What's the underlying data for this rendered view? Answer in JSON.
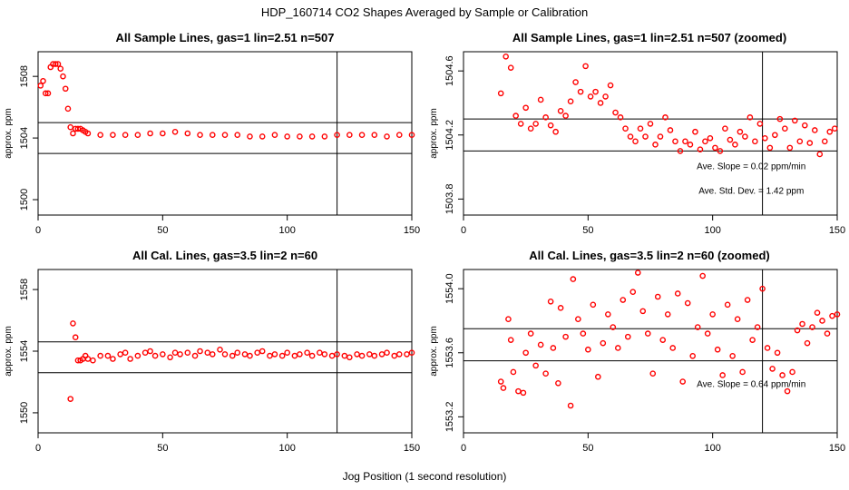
{
  "figure": {
    "title": "HDP_160714  CO2 Shapes Averaged by Sample or Calibration",
    "xlabel": "Jog Position (1 second resolution)"
  },
  "chart_data": [
    {
      "type": "scatter",
      "title": "All Sample Lines, gas=1 lin=2.51 n=507",
      "xlabel": "",
      "ylabel": "approx. ppm",
      "xlim": [
        0,
        150
      ],
      "ylim": [
        1499,
        1509.6
      ],
      "xticks": [
        0,
        50,
        100,
        150
      ],
      "yticks": [
        1500,
        1504,
        1508
      ],
      "hlines": [
        1505.0,
        1503.0
      ],
      "vline": 120,
      "annotations": [],
      "series": [
        {
          "name": "Sample average",
          "color": "#ff0000",
          "x": [
            1,
            2,
            3,
            4,
            5,
            6,
            7,
            8,
            9,
            10,
            11,
            12,
            13,
            14,
            15,
            16,
            17,
            18,
            19,
            20,
            25,
            30,
            35,
            40,
            45,
            50,
            55,
            60,
            65,
            70,
            75,
            80,
            85,
            90,
            95,
            100,
            105,
            110,
            115,
            120,
            125,
            130,
            135,
            140,
            145,
            150
          ],
          "y": [
            1507.4,
            1507.7,
            1506.9,
            1506.9,
            1508.6,
            1508.8,
            1508.8,
            1508.8,
            1508.5,
            1508.0,
            1507.2,
            1505.9,
            1504.7,
            1504.3,
            1504.6,
            1504.6,
            1504.6,
            1504.5,
            1504.4,
            1504.3,
            1504.2,
            1504.2,
            1504.2,
            1504.2,
            1504.3,
            1504.3,
            1504.4,
            1504.3,
            1504.2,
            1504.2,
            1504.2,
            1504.2,
            1504.1,
            1504.1,
            1504.2,
            1504.1,
            1504.1,
            1504.1,
            1504.1,
            1504.2,
            1504.2,
            1504.2,
            1504.2,
            1504.1,
            1504.2,
            1504.2
          ]
        }
      ]
    },
    {
      "type": "scatter",
      "title": "All Sample Lines, gas=1 lin=2.51 n=507 (zoomed)",
      "xlabel": "",
      "ylabel": "approx. ppm",
      "xlim": [
        0,
        150
      ],
      "ylim": [
        1503.7,
        1504.72
      ],
      "xticks": [
        0,
        50,
        100,
        150
      ],
      "yticks": [
        1503.8,
        1504.2,
        1504.6
      ],
      "hlines": [
        1504.3,
        1504.1
      ],
      "vline": 120,
      "annotations": [
        "Ave. Slope =  0.02  ppm/min",
        "Ave. Std. Dev. =  1.42  ppm"
      ],
      "series": [
        {
          "name": "Sample average (zoomed)",
          "color": "#ff0000",
          "x": [
            15,
            17,
            19,
            21,
            23,
            25,
            27,
            29,
            31,
            33,
            35,
            37,
            39,
            41,
            43,
            45,
            47,
            49,
            51,
            53,
            55,
            57,
            59,
            61,
            63,
            65,
            67,
            69,
            71,
            73,
            75,
            77,
            79,
            81,
            83,
            85,
            87,
            89,
            91,
            93,
            95,
            97,
            99,
            101,
            103,
            105,
            107,
            109,
            111,
            113,
            115,
            117,
            119,
            121,
            123,
            125,
            127,
            129,
            131,
            133,
            135,
            137,
            139,
            141,
            143,
            145,
            147,
            149
          ],
          "y": [
            1504.46,
            1504.69,
            1504.62,
            1504.32,
            1504.27,
            1504.37,
            1504.24,
            1504.27,
            1504.42,
            1504.31,
            1504.26,
            1504.22,
            1504.35,
            1504.32,
            1504.41,
            1504.53,
            1504.47,
            1504.63,
            1504.44,
            1504.47,
            1504.4,
            1504.44,
            1504.51,
            1504.34,
            1504.31,
            1504.24,
            1504.19,
            1504.16,
            1504.24,
            1504.19,
            1504.27,
            1504.14,
            1504.19,
            1504.31,
            1504.23,
            1504.16,
            1504.1,
            1504.16,
            1504.14,
            1504.22,
            1504.11,
            1504.16,
            1504.18,
            1504.12,
            1504.1,
            1504.24,
            1504.17,
            1504.14,
            1504.22,
            1504.19,
            1504.31,
            1504.16,
            1504.27,
            1504.18,
            1504.12,
            1504.2,
            1504.3,
            1504.24,
            1504.12,
            1504.29,
            1504.16,
            1504.26,
            1504.15,
            1504.23,
            1504.08,
            1504.16,
            1504.22,
            1504.24
          ]
        }
      ]
    },
    {
      "type": "scatter",
      "title": "All Cal. Lines, gas=3.5 lin=2 n=60",
      "xlabel": "",
      "ylabel": "approx. ppm",
      "xlim": [
        0,
        150
      ],
      "ylim": [
        1548.7,
        1559.3
      ],
      "xticks": [
        0,
        50,
        100,
        150
      ],
      "yticks": [
        1550,
        1554,
        1558
      ],
      "hlines": [
        1554.6,
        1552.6
      ],
      "vline": 120,
      "annotations": [],
      "series": [
        {
          "name": "Calibration average",
          "color": "#ff0000",
          "x": [
            13,
            14,
            15,
            16,
            17,
            18,
            19,
            20,
            22,
            25,
            28,
            30,
            33,
            35,
            37,
            40,
            43,
            45,
            47,
            50,
            53,
            55,
            57,
            60,
            63,
            65,
            68,
            70,
            73,
            75,
            78,
            80,
            83,
            85,
            88,
            90,
            93,
            95,
            98,
            100,
            103,
            105,
            108,
            110,
            113,
            115,
            118,
            120,
            123,
            125,
            128,
            130,
            133,
            135,
            138,
            140,
            143,
            145,
            148,
            150
          ],
          "y": [
            1550.9,
            1555.8,
            1554.9,
            1553.4,
            1553.4,
            1553.5,
            1553.7,
            1553.5,
            1553.4,
            1553.7,
            1553.7,
            1553.5,
            1553.8,
            1553.9,
            1553.5,
            1553.7,
            1553.9,
            1554.0,
            1553.7,
            1553.8,
            1553.6,
            1553.9,
            1553.8,
            1553.9,
            1553.7,
            1554.0,
            1553.9,
            1553.8,
            1554.1,
            1553.8,
            1553.7,
            1553.9,
            1553.8,
            1553.7,
            1553.9,
            1554.0,
            1553.7,
            1553.8,
            1553.7,
            1553.9,
            1553.7,
            1553.8,
            1553.9,
            1553.7,
            1553.9,
            1553.8,
            1553.7,
            1553.8,
            1553.7,
            1553.6,
            1553.8,
            1553.7,
            1553.8,
            1553.7,
            1553.8,
            1553.9,
            1553.7,
            1553.8,
            1553.8,
            1553.9
          ]
        }
      ]
    },
    {
      "type": "scatter",
      "title": "All Cal. Lines, gas=3.5 lin=2 n=60 (zoomed)",
      "xlabel": "",
      "ylabel": "approx. ppm",
      "xlim": [
        0,
        150
      ],
      "ylim": [
        1553.1,
        1554.12
      ],
      "xticks": [
        0,
        50,
        100,
        150
      ],
      "yticks": [
        1553.2,
        1553.6,
        1554.0
      ],
      "hlines": [
        1553.75,
        1553.55
      ],
      "vline": 120,
      "annotations": [
        "Ave. Slope =  0.64  ppm/min"
      ],
      "series": [
        {
          "name": "Calibration average (zoomed)",
          "color": "#ff0000",
          "x": [
            15,
            16,
            18,
            19,
            20,
            22,
            24,
            25,
            27,
            29,
            31,
            33,
            35,
            36,
            38,
            39,
            41,
            43,
            44,
            46,
            48,
            50,
            52,
            54,
            56,
            58,
            60,
            62,
            64,
            66,
            68,
            70,
            72,
            74,
            76,
            78,
            80,
            82,
            84,
            86,
            88,
            90,
            92,
            94,
            96,
            98,
            100,
            102,
            104,
            106,
            108,
            110,
            112,
            114,
            116,
            118,
            120,
            122,
            124,
            126,
            128,
            130,
            132,
            134,
            136,
            138,
            140,
            142,
            144,
            146,
            148,
            150
          ],
          "y": [
            1553.42,
            1553.38,
            1553.81,
            1553.68,
            1553.48,
            1553.36,
            1553.35,
            1553.6,
            1553.72,
            1553.52,
            1553.65,
            1553.47,
            1553.92,
            1553.63,
            1553.41,
            1553.88,
            1553.7,
            1553.27,
            1554.06,
            1553.81,
            1553.72,
            1553.62,
            1553.9,
            1553.45,
            1553.66,
            1553.84,
            1553.76,
            1553.63,
            1553.93,
            1553.7,
            1553.98,
            1554.1,
            1553.86,
            1553.72,
            1553.47,
            1553.95,
            1553.68,
            1553.84,
            1553.63,
            1553.97,
            1553.42,
            1553.91,
            1553.58,
            1553.76,
            1554.08,
            1553.72,
            1553.84,
            1553.62,
            1553.46,
            1553.9,
            1553.58,
            1553.81,
            1553.48,
            1553.93,
            1553.68,
            1553.76,
            1554.0,
            1553.63,
            1553.5,
            1553.6,
            1553.46,
            1553.36,
            1553.48,
            1553.74,
            1553.78,
            1553.66,
            1553.76,
            1553.85,
            1553.8,
            1553.72,
            1553.83,
            1553.84
          ]
        }
      ]
    }
  ]
}
